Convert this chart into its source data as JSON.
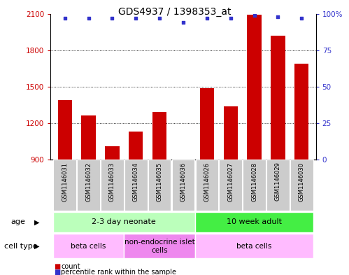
{
  "title": "GDS4937 / 1398353_at",
  "samples": [
    "GSM1146031",
    "GSM1146032",
    "GSM1146033",
    "GSM1146034",
    "GSM1146035",
    "GSM1146036",
    "GSM1146026",
    "GSM1146027",
    "GSM1146028",
    "GSM1146029",
    "GSM1146030"
  ],
  "counts": [
    1390,
    1265,
    1010,
    1130,
    1290,
    870,
    1490,
    1340,
    2090,
    1920,
    1690
  ],
  "percentiles": [
    97,
    97,
    97,
    97,
    97,
    94,
    97,
    97,
    99,
    98,
    97
  ],
  "ylim_left": [
    900,
    2100
  ],
  "ylim_right": [
    0,
    100
  ],
  "yticks_left": [
    900,
    1200,
    1500,
    1800,
    2100
  ],
  "yticks_right": [
    0,
    25,
    50,
    75,
    100
  ],
  "bar_color": "#cc0000",
  "dot_color": "#3333cc",
  "age_groups": [
    {
      "label": "2-3 day neonate",
      "start": 0,
      "end": 6,
      "color": "#bbffbb"
    },
    {
      "label": "10 week adult",
      "start": 6,
      "end": 11,
      "color": "#44ee44"
    }
  ],
  "cell_type_groups": [
    {
      "label": "beta cells",
      "start": 0,
      "end": 3,
      "color": "#ffbbff"
    },
    {
      "label": "non-endocrine islet\ncells",
      "start": 3,
      "end": 6,
      "color": "#ee88ee"
    },
    {
      "label": "beta cells",
      "start": 6,
      "end": 11,
      "color": "#ffbbff"
    }
  ],
  "legend_count_label": "count",
  "legend_percentile_label": "percentile rank within the sample",
  "age_label": "age",
  "cell_type_label": "cell type",
  "title_fontsize": 10,
  "tick_fontsize": 7.5,
  "bar_label_fontsize": 6,
  "row_label_fontsize": 8
}
